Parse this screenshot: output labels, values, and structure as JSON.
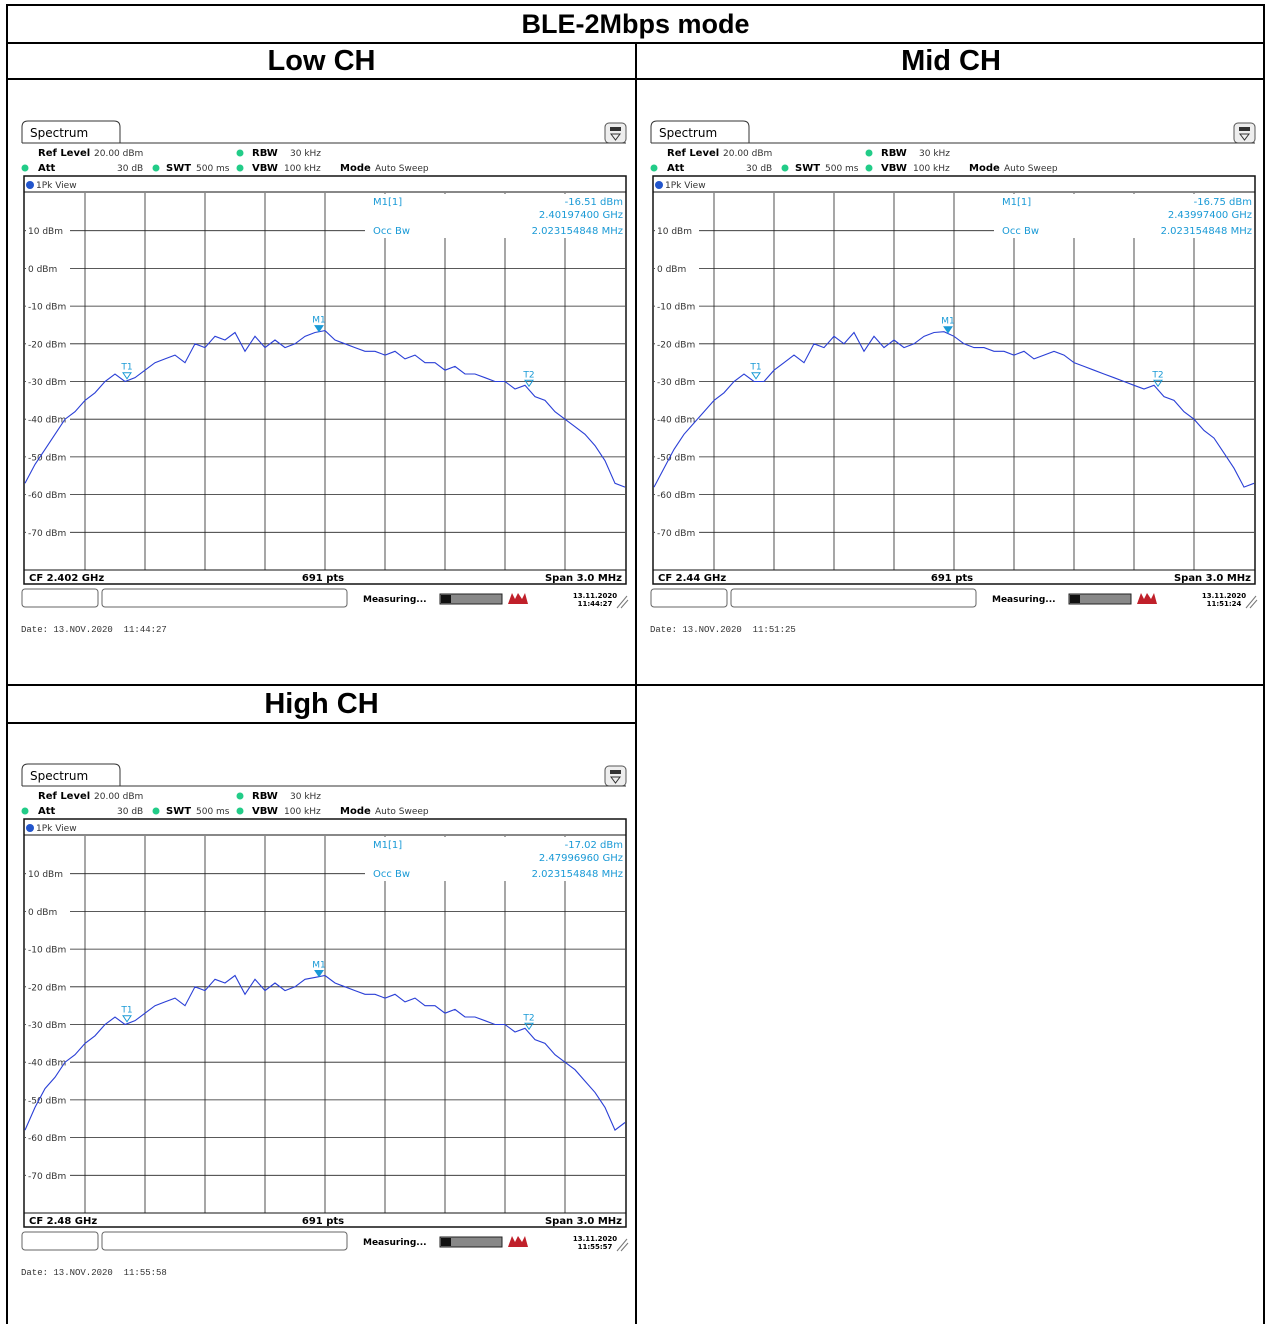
{
  "page_title": "BLE-2Mbps mode",
  "panels": [
    {
      "heading": "Low CH",
      "tab": "Spectrum",
      "ref_label": "Ref Level",
      "ref_value": "20.00 dBm",
      "att_label": "Att",
      "att_value": "30 dB",
      "swt_label": "SWT",
      "swt_value": "500 ms",
      "rbw_label": "RBW",
      "rbw_value": "30 kHz",
      "vbw_label": "VBW",
      "vbw_value": "100 kHz",
      "mode_label": "Mode",
      "mode_value": "Auto Sweep",
      "view_label": "1Pk View",
      "marker_title": "M1[1]",
      "marker_level": "-16.51 dBm",
      "marker_freq": "2.40197400 GHz",
      "occbw_label": "Occ Bw",
      "occbw_value": "2.023154848 MHz",
      "cf_label": "CF 2.402 GHz",
      "pts_label": "691 pts",
      "span_label": "Span 3.0 MHz",
      "status_measuring": "Measuring...",
      "status_date": "13.11.2020",
      "status_time": "11:44:27",
      "date_footer": "Date: 13.NOV.2020  11:44:27",
      "chart_data": {
        "type": "line",
        "x_unit": "MHz offset from CF",
        "xlim": [
          -1.5,
          1.5
        ],
        "ylim": [
          -80,
          20
        ],
        "y_ticks": [
          "10 dBm",
          "0 dBm",
          "-10 dBm",
          "-20 dBm",
          "-30 dBm",
          "-40 dBm",
          "-50 dBm",
          "-60 dBm",
          "-70 dBm"
        ],
        "x": [
          -1.5,
          -1.45,
          -1.4,
          -1.35,
          -1.3,
          -1.25,
          -1.2,
          -1.15,
          -1.1,
          -1.05,
          -1.0,
          -0.95,
          -0.9,
          -0.85,
          -0.8,
          -0.75,
          -0.7,
          -0.65,
          -0.6,
          -0.55,
          -0.5,
          -0.45,
          -0.4,
          -0.35,
          -0.3,
          -0.25,
          -0.2,
          -0.15,
          -0.1,
          -0.05,
          0.0,
          0.05,
          0.1,
          0.15,
          0.2,
          0.25,
          0.3,
          0.35,
          0.4,
          0.45,
          0.5,
          0.55,
          0.6,
          0.65,
          0.7,
          0.75,
          0.8,
          0.85,
          0.9,
          0.95,
          1.0,
          1.05,
          1.1,
          1.15,
          1.2,
          1.25,
          1.3,
          1.35,
          1.4,
          1.45,
          1.5
        ],
        "y": [
          -57,
          -52,
          -48,
          -44,
          -40,
          -38,
          -35,
          -33,
          -30,
          -28,
          -30,
          -29,
          -27,
          -25,
          -24,
          -23,
          -25,
          -20,
          -21,
          -18,
          -19,
          -17,
          -22,
          -18,
          -21,
          -19,
          -21,
          -20,
          -18,
          -17,
          -16.5,
          -19,
          -20,
          -21,
          -22,
          -22,
          -23,
          -22,
          -24,
          -23,
          -25,
          -25,
          -27,
          -26,
          -28,
          -28,
          -29,
          -30,
          -30,
          -32,
          -31,
          -34,
          -35,
          -38,
          -40,
          -42,
          -44,
          -47,
          -51,
          -57,
          -58
        ],
        "markers": [
          {
            "label": "T1",
            "x": -0.99,
            "y": -29
          },
          {
            "label": "M1",
            "x": -0.03,
            "y": -16.5
          },
          {
            "label": "T2",
            "x": 1.02,
            "y": -31
          }
        ]
      }
    },
    {
      "heading": "Mid CH",
      "tab": "Spectrum",
      "ref_label": "Ref Level",
      "ref_value": "20.00 dBm",
      "att_label": "Att",
      "att_value": "30 dB",
      "swt_label": "SWT",
      "swt_value": "500 ms",
      "rbw_label": "RBW",
      "rbw_value": "30 kHz",
      "vbw_label": "VBW",
      "vbw_value": "100 kHz",
      "mode_label": "Mode",
      "mode_value": "Auto Sweep",
      "view_label": "1Pk View",
      "marker_title": "M1[1]",
      "marker_level": "-16.75 dBm",
      "marker_freq": "2.43997400 GHz",
      "occbw_label": "Occ Bw",
      "occbw_value": "2.023154848 MHz",
      "cf_label": "CF 2.44 GHz",
      "pts_label": "691 pts",
      "span_label": "Span 3.0 MHz",
      "status_measuring": "Measuring...",
      "status_date": "13.11.2020",
      "status_time": "11:51:24",
      "date_footer": "Date: 13.NOV.2020  11:51:25",
      "chart_data": {
        "type": "line",
        "x_unit": "MHz offset from CF",
        "xlim": [
          -1.5,
          1.5
        ],
        "ylim": [
          -80,
          20
        ],
        "y_ticks": [
          "10 dBm",
          "0 dBm",
          "-10 dBm",
          "-20 dBm",
          "-30 dBm",
          "-40 dBm",
          "-50 dBm",
          "-60 dBm",
          "-70 dBm"
        ],
        "x": [
          -1.5,
          -1.45,
          -1.4,
          -1.35,
          -1.3,
          -1.25,
          -1.2,
          -1.15,
          -1.1,
          -1.05,
          -1.0,
          -0.95,
          -0.9,
          -0.85,
          -0.8,
          -0.75,
          -0.7,
          -0.65,
          -0.6,
          -0.55,
          -0.5,
          -0.45,
          -0.4,
          -0.35,
          -0.3,
          -0.25,
          -0.2,
          -0.15,
          -0.1,
          -0.05,
          0.0,
          0.05,
          0.1,
          0.15,
          0.2,
          0.25,
          0.3,
          0.35,
          0.4,
          0.45,
          0.5,
          0.55,
          0.6,
          0.65,
          0.7,
          0.75,
          0.8,
          0.85,
          0.9,
          0.95,
          1.0,
          1.05,
          1.1,
          1.15,
          1.2,
          1.25,
          1.3,
          1.35,
          1.4,
          1.45,
          1.5
        ],
        "y": [
          -58,
          -53,
          -48,
          -44,
          -41,
          -38,
          -35,
          -33,
          -30,
          -28,
          -30,
          -30,
          -27,
          -25,
          -23,
          -25,
          -20,
          -21,
          -18,
          -20,
          -17,
          -22,
          -18,
          -21,
          -19,
          -21,
          -20,
          -18,
          -17,
          -16.8,
          -18,
          -20,
          -21,
          -21,
          -22,
          -22,
          -23,
          -22,
          -24,
          -23,
          -22,
          -23,
          -25,
          -26,
          -27,
          -28,
          -29,
          -30,
          -31,
          -32,
          -31,
          -34,
          -35,
          -38,
          -40,
          -43,
          -45,
          -49,
          -53,
          -58,
          -57
        ],
        "markers": [
          {
            "label": "T1",
            "x": -0.99,
            "y": -29
          },
          {
            "label": "M1",
            "x": -0.03,
            "y": -16.8
          },
          {
            "label": "T2",
            "x": 1.02,
            "y": -31
          }
        ]
      }
    },
    {
      "heading": "High CH",
      "tab": "Spectrum",
      "ref_label": "Ref Level",
      "ref_value": "20.00 dBm",
      "att_label": "Att",
      "att_value": "30 dB",
      "swt_label": "SWT",
      "swt_value": "500 ms",
      "rbw_label": "RBW",
      "rbw_value": "30 kHz",
      "vbw_label": "VBW",
      "vbw_value": "100 kHz",
      "mode_label": "Mode",
      "mode_value": "Auto Sweep",
      "view_label": "1Pk View",
      "marker_title": "M1[1]",
      "marker_level": "-17.02 dBm",
      "marker_freq": "2.47996960 GHz",
      "occbw_label": "Occ Bw",
      "occbw_value": "2.023154848 MHz",
      "cf_label": "CF 2.48 GHz",
      "pts_label": "691 pts",
      "span_label": "Span 3.0 MHz",
      "status_measuring": "Measuring...",
      "status_date": "13.11.2020",
      "status_time": "11:55:57",
      "date_footer": "Date: 13.NOV.2020  11:55:58",
      "chart_data": {
        "type": "line",
        "x_unit": "MHz offset from CF",
        "xlim": [
          -1.5,
          1.5
        ],
        "ylim": [
          -80,
          20
        ],
        "y_ticks": [
          "10 dBm",
          "0 dBm",
          "-10 dBm",
          "-20 dBm",
          "-30 dBm",
          "-40 dBm",
          "-50 dBm",
          "-60 dBm",
          "-70 dBm"
        ],
        "x": [
          -1.5,
          -1.45,
          -1.4,
          -1.35,
          -1.3,
          -1.25,
          -1.2,
          -1.15,
          -1.1,
          -1.05,
          -1.0,
          -0.95,
          -0.9,
          -0.85,
          -0.8,
          -0.75,
          -0.7,
          -0.65,
          -0.6,
          -0.55,
          -0.5,
          -0.45,
          -0.4,
          -0.35,
          -0.3,
          -0.25,
          -0.2,
          -0.15,
          -0.1,
          -0.05,
          0.0,
          0.05,
          0.1,
          0.15,
          0.2,
          0.25,
          0.3,
          0.35,
          0.4,
          0.45,
          0.5,
          0.55,
          0.6,
          0.65,
          0.7,
          0.75,
          0.8,
          0.85,
          0.9,
          0.95,
          1.0,
          1.05,
          1.1,
          1.15,
          1.2,
          1.25,
          1.3,
          1.35,
          1.4,
          1.45,
          1.5
        ],
        "y": [
          -58,
          -52,
          -47,
          -44,
          -40,
          -38,
          -35,
          -33,
          -30,
          -28,
          -30,
          -29,
          -27,
          -25,
          -24,
          -23,
          -25,
          -20,
          -21,
          -18,
          -19,
          -17,
          -22,
          -18,
          -21,
          -19,
          -21,
          -20,
          -18,
          -17.5,
          -17,
          -19,
          -20,
          -21,
          -22,
          -22,
          -23,
          -22,
          -24,
          -23,
          -25,
          -25,
          -27,
          -26,
          -28,
          -28,
          -29,
          -30,
          -30,
          -32,
          -31,
          -34,
          -35,
          -38,
          -40,
          -42,
          -45,
          -48,
          -52,
          -58,
          -56
        ],
        "markers": [
          {
            "label": "T1",
            "x": -0.99,
            "y": -29
          },
          {
            "label": "M1",
            "x": -0.03,
            "y": -17
          },
          {
            "label": "T2",
            "x": 1.02,
            "y": -31
          }
        ]
      }
    }
  ]
}
